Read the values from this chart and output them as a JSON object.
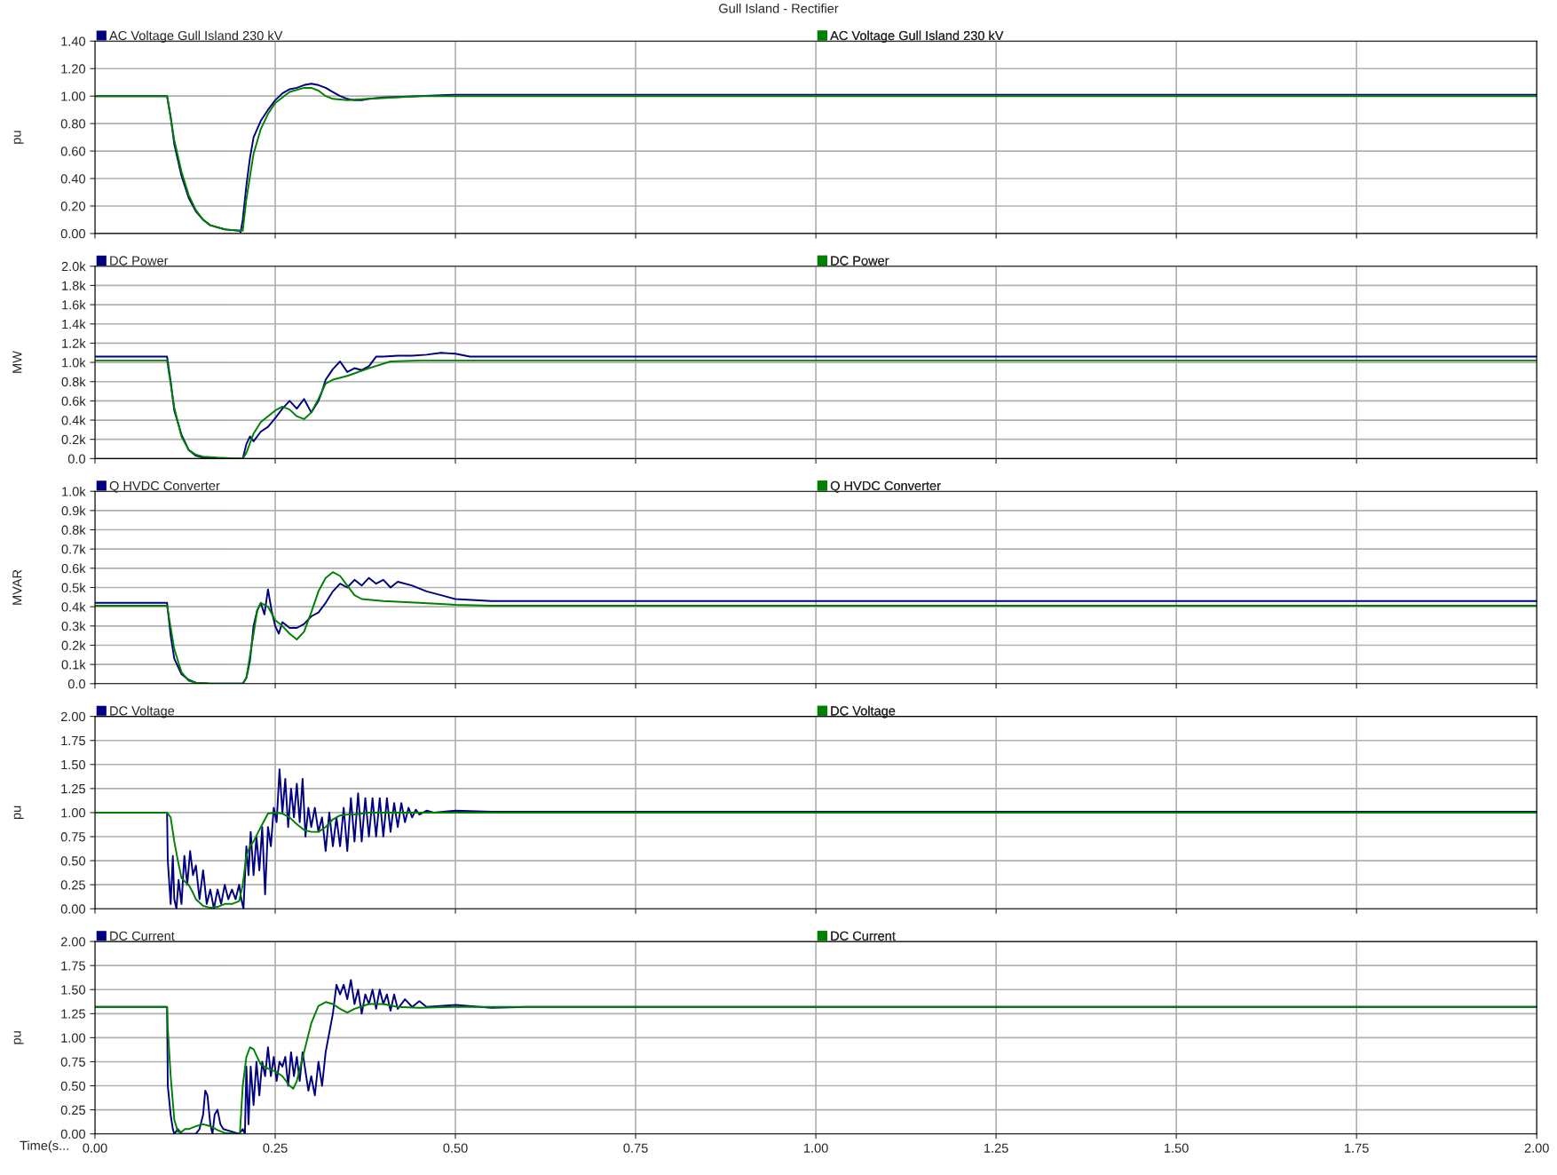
{
  "chart_data": [
    {
      "type": "line",
      "title": "Gull Island - Rectifier",
      "ylabel": "pu",
      "xlim": [
        0,
        2
      ],
      "ylim": [
        0,
        1.4
      ],
      "grid": true,
      "legend": "top",
      "tick_labels": "y",
      "line_style": "solid",
      "marker": "none",
      "xticks": [
        {
          "value": 0,
          "label": null
        },
        {
          "value": 0.25,
          "label": null
        },
        {
          "value": 0.5,
          "label": null
        },
        {
          "value": 0.75,
          "label": null
        },
        {
          "value": 1,
          "label": null
        },
        {
          "value": 1.25,
          "label": null
        },
        {
          "value": 1.5,
          "label": null
        },
        {
          "value": 1.75,
          "label": null
        },
        {
          "value": 2,
          "label": null
        }
      ],
      "yticks": [
        {
          "value": 0,
          "label": "0.00"
        },
        {
          "value": 0.2,
          "label": "0.20"
        },
        {
          "value": 0.4,
          "label": "0.40"
        },
        {
          "value": 0.6,
          "label": "0.60"
        },
        {
          "value": 0.8,
          "label": "0.80"
        },
        {
          "value": 1.0,
          "label": "1.00"
        },
        {
          "value": 1.2,
          "label": "1.20"
        },
        {
          "value": 1.4,
          "label": "1.40"
        }
      ],
      "series": [
        {
          "name": "AC Voltage Gull Island 230 kV",
          "color": "#000080",
          "x": [
            0,
            0.1,
            0.105,
            0.11,
            0.12,
            0.13,
            0.14,
            0.15,
            0.16,
            0.18,
            0.2,
            0.202,
            0.205,
            0.21,
            0.215,
            0.22,
            0.23,
            0.24,
            0.25,
            0.26,
            0.27,
            0.28,
            0.29,
            0.3,
            0.31,
            0.32,
            0.33,
            0.34,
            0.35,
            0.36,
            0.37,
            0.38,
            0.4,
            0.45,
            0.5,
            0.55,
            0.6,
            2.0
          ],
          "values": [
            1.0,
            1.0,
            0.85,
            0.65,
            0.42,
            0.26,
            0.16,
            0.1,
            0.06,
            0.03,
            0.02,
            0.01,
            0.1,
            0.35,
            0.55,
            0.7,
            0.82,
            0.9,
            0.97,
            1.02,
            1.05,
            1.06,
            1.08,
            1.09,
            1.08,
            1.06,
            1.03,
            1.0,
            0.98,
            0.97,
            0.97,
            0.98,
            0.99,
            1.0,
            1.01,
            1.01,
            1.01,
            1.01
          ]
        },
        {
          "name": "AC Voltage Gull Island 230 kV",
          "color": "#008000",
          "x": [
            0,
            0.1,
            0.11,
            0.12,
            0.13,
            0.14,
            0.15,
            0.16,
            0.18,
            0.2,
            0.205,
            0.21,
            0.22,
            0.23,
            0.24,
            0.25,
            0.27,
            0.29,
            0.3,
            0.31,
            0.32,
            0.33,
            0.35,
            0.38,
            0.45,
            0.5,
            2.0
          ],
          "values": [
            1.0,
            1.0,
            0.68,
            0.45,
            0.28,
            0.17,
            0.1,
            0.06,
            0.03,
            0.02,
            0.02,
            0.25,
            0.58,
            0.76,
            0.87,
            0.95,
            1.03,
            1.06,
            1.06,
            1.04,
            1.0,
            0.98,
            0.97,
            0.98,
            1.0,
            1.0,
            1.0
          ]
        }
      ]
    },
    {
      "type": "line",
      "ylabel": "MW",
      "xlim": [
        0,
        2
      ],
      "ylim": [
        0,
        2000
      ],
      "grid": true,
      "legend": "top",
      "tick_labels": "y",
      "line_style": "solid",
      "marker": "none",
      "xticks": [
        {
          "value": 0,
          "label": null
        },
        {
          "value": 0.25,
          "label": null
        },
        {
          "value": 0.5,
          "label": null
        },
        {
          "value": 0.75,
          "label": null
        },
        {
          "value": 1,
          "label": null
        },
        {
          "value": 1.25,
          "label": null
        },
        {
          "value": 1.5,
          "label": null
        },
        {
          "value": 1.75,
          "label": null
        },
        {
          "value": 2,
          "label": null
        }
      ],
      "yticks": [
        {
          "value": 0,
          "label": "0.0"
        },
        {
          "value": 200,
          "label": "0.2k"
        },
        {
          "value": 400,
          "label": "0.4k"
        },
        {
          "value": 600,
          "label": "0.6k"
        },
        {
          "value": 800,
          "label": "0.8k"
        },
        {
          "value": 1000,
          "label": "1.0k"
        },
        {
          "value": 1200,
          "label": "1.2k"
        },
        {
          "value": 1400,
          "label": "1.4k"
        },
        {
          "value": 1600,
          "label": "1.6k"
        },
        {
          "value": 1800,
          "label": "1.8k"
        },
        {
          "value": 2000,
          "label": "2.0k"
        }
      ],
      "series": [
        {
          "name": "DC Power",
          "color": "#000080",
          "x": [
            0,
            0.1,
            0.105,
            0.11,
            0.12,
            0.13,
            0.14,
            0.15,
            0.18,
            0.205,
            0.21,
            0.215,
            0.22,
            0.23,
            0.24,
            0.25,
            0.26,
            0.27,
            0.28,
            0.29,
            0.3,
            0.31,
            0.315,
            0.32,
            0.33,
            0.34,
            0.35,
            0.36,
            0.37,
            0.38,
            0.39,
            0.4,
            0.42,
            0.44,
            0.46,
            0.48,
            0.5,
            0.52,
            0.55,
            0.6,
            2.0
          ],
          "values": [
            1060,
            1060,
            800,
            500,
            250,
            90,
            30,
            10,
            0,
            0,
            150,
            230,
            180,
            280,
            330,
            420,
            520,
            600,
            520,
            620,
            480,
            600,
            700,
            820,
            930,
            1010,
            900,
            940,
            920,
            960,
            1060,
            1060,
            1070,
            1070,
            1080,
            1100,
            1090,
            1060,
            1060,
            1060,
            1060
          ]
        },
        {
          "name": "DC Power",
          "color": "#008000",
          "x": [
            0,
            0.1,
            0.11,
            0.12,
            0.13,
            0.14,
            0.15,
            0.17,
            0.2,
            0.205,
            0.21,
            0.22,
            0.23,
            0.24,
            0.25,
            0.26,
            0.27,
            0.28,
            0.29,
            0.3,
            0.31,
            0.32,
            0.33,
            0.35,
            0.38,
            0.41,
            0.45,
            0.5,
            2.0
          ],
          "values": [
            1020,
            1020,
            530,
            230,
            90,
            40,
            20,
            10,
            0,
            0,
            60,
            260,
            380,
            440,
            500,
            540,
            510,
            440,
            410,
            480,
            620,
            780,
            820,
            860,
            940,
            1010,
            1020,
            1020,
            1020
          ]
        }
      ]
    },
    {
      "type": "line",
      "ylabel": "MVAR",
      "xlim": [
        0,
        2
      ],
      "ylim": [
        0,
        1000
      ],
      "grid": true,
      "legend": "top",
      "tick_labels": "y",
      "line_style": "solid",
      "marker": "none",
      "xticks": [
        {
          "value": 0,
          "label": null
        },
        {
          "value": 0.25,
          "label": null
        },
        {
          "value": 0.5,
          "label": null
        },
        {
          "value": 0.75,
          "label": null
        },
        {
          "value": 1,
          "label": null
        },
        {
          "value": 1.25,
          "label": null
        },
        {
          "value": 1.5,
          "label": null
        },
        {
          "value": 1.75,
          "label": null
        },
        {
          "value": 2,
          "label": null
        }
      ],
      "yticks": [
        {
          "value": 0,
          "label": "0.0"
        },
        {
          "value": 100,
          "label": "0.1k"
        },
        {
          "value": 200,
          "label": "0.2k"
        },
        {
          "value": 300,
          "label": "0.3k"
        },
        {
          "value": 400,
          "label": "0.4k"
        },
        {
          "value": 500,
          "label": "0.5k"
        },
        {
          "value": 600,
          "label": "0.6k"
        },
        {
          "value": 700,
          "label": "0.7k"
        },
        {
          "value": 800,
          "label": "0.8k"
        },
        {
          "value": 900,
          "label": "0.9k"
        },
        {
          "value": 1000,
          "label": "1.0k"
        }
      ],
      "series": [
        {
          "name": "Q HVDC Converter",
          "color": "#000080",
          "x": [
            0,
            0.1,
            0.105,
            0.11,
            0.12,
            0.13,
            0.14,
            0.16,
            0.2,
            0.205,
            0.21,
            0.215,
            0.22,
            0.225,
            0.23,
            0.235,
            0.24,
            0.245,
            0.25,
            0.255,
            0.26,
            0.27,
            0.28,
            0.29,
            0.3,
            0.31,
            0.32,
            0.33,
            0.34,
            0.35,
            0.36,
            0.37,
            0.38,
            0.39,
            0.4,
            0.41,
            0.42,
            0.44,
            0.46,
            0.48,
            0.5,
            0.55,
            0.6,
            2.0
          ],
          "values": [
            420,
            420,
            250,
            130,
            50,
            20,
            5,
            0,
            0,
            0,
            30,
            120,
            300,
            380,
            420,
            360,
            490,
            380,
            300,
            260,
            320,
            290,
            290,
            310,
            350,
            370,
            420,
            480,
            520,
            500,
            540,
            510,
            550,
            520,
            540,
            500,
            530,
            510,
            480,
            460,
            440,
            430,
            430,
            430
          ]
        },
        {
          "name": "Q HVDC Converter",
          "color": "#008000",
          "x": [
            0,
            0.1,
            0.11,
            0.12,
            0.13,
            0.14,
            0.16,
            0.2,
            0.205,
            0.21,
            0.22,
            0.225,
            0.23,
            0.24,
            0.25,
            0.26,
            0.27,
            0.28,
            0.29,
            0.3,
            0.31,
            0.32,
            0.33,
            0.34,
            0.35,
            0.36,
            0.37,
            0.4,
            0.45,
            0.5,
            0.55,
            2.0
          ],
          "values": [
            405,
            405,
            180,
            60,
            15,
            5,
            0,
            0,
            0,
            30,
            260,
            380,
            420,
            400,
            330,
            300,
            260,
            230,
            270,
            370,
            480,
            550,
            580,
            560,
            510,
            460,
            440,
            430,
            420,
            410,
            405,
            405
          ]
        }
      ]
    },
    {
      "type": "line",
      "ylabel": "pu",
      "xlim": [
        0,
        2
      ],
      "ylim": [
        0,
        2
      ],
      "grid": true,
      "legend": "top",
      "tick_labels": "y",
      "line_style": "solid",
      "marker": "none",
      "xticks": [
        {
          "value": 0,
          "label": null
        },
        {
          "value": 0.25,
          "label": null
        },
        {
          "value": 0.5,
          "label": null
        },
        {
          "value": 0.75,
          "label": null
        },
        {
          "value": 1,
          "label": null
        },
        {
          "value": 1.25,
          "label": null
        },
        {
          "value": 1.5,
          "label": null
        },
        {
          "value": 1.75,
          "label": null
        },
        {
          "value": 2,
          "label": null
        }
      ],
      "yticks": [
        {
          "value": 0,
          "label": "0.00"
        },
        {
          "value": 0.25,
          "label": "0.25"
        },
        {
          "value": 0.5,
          "label": "0.50"
        },
        {
          "value": 0.75,
          "label": "0.75"
        },
        {
          "value": 1.0,
          "label": "1.00"
        },
        {
          "value": 1.25,
          "label": "1.25"
        },
        {
          "value": 1.5,
          "label": "1.50"
        },
        {
          "value": 1.75,
          "label": "1.75"
        },
        {
          "value": 2.0,
          "label": "2.00"
        }
      ],
      "series": [
        {
          "name": "DC Voltage",
          "color": "#000080",
          "x": [
            0,
            0.1,
            0.101,
            0.105,
            0.108,
            0.11,
            0.113,
            0.116,
            0.12,
            0.124,
            0.128,
            0.132,
            0.136,
            0.14,
            0.145,
            0.15,
            0.155,
            0.16,
            0.165,
            0.17,
            0.175,
            0.18,
            0.185,
            0.19,
            0.195,
            0.2,
            0.203,
            0.206,
            0.21,
            0.213,
            0.216,
            0.22,
            0.224,
            0.228,
            0.232,
            0.236,
            0.24,
            0.244,
            0.248,
            0.252,
            0.256,
            0.26,
            0.264,
            0.268,
            0.272,
            0.276,
            0.28,
            0.284,
            0.288,
            0.292,
            0.296,
            0.3,
            0.305,
            0.31,
            0.315,
            0.32,
            0.325,
            0.33,
            0.335,
            0.34,
            0.345,
            0.35,
            0.355,
            0.36,
            0.365,
            0.37,
            0.375,
            0.38,
            0.385,
            0.39,
            0.395,
            0.4,
            0.405,
            0.41,
            0.415,
            0.42,
            0.425,
            0.43,
            0.435,
            0.44,
            0.445,
            0.45,
            0.46,
            0.47,
            0.5,
            0.55,
            2.0
          ],
          "values": [
            1.0,
            1.0,
            0.5,
            0.05,
            0.55,
            0.1,
            0.0,
            0.3,
            0.05,
            0.55,
            0.25,
            0.6,
            0.35,
            0.45,
            0.1,
            0.4,
            0.05,
            0.2,
            0.0,
            0.2,
            0.05,
            0.25,
            0.1,
            0.2,
            0.1,
            0.25,
            0.1,
            0.0,
            0.65,
            0.35,
            0.8,
            0.35,
            0.75,
            0.4,
            0.85,
            0.15,
            0.85,
            0.65,
            1.05,
            0.9,
            1.45,
            1.0,
            1.35,
            0.85,
            1.25,
            0.95,
            1.3,
            0.9,
            1.35,
            0.75,
            1.05,
            0.85,
            1.05,
            0.8,
            0.95,
            0.6,
            1.0,
            0.65,
            0.95,
            0.65,
            1.05,
            0.6,
            1.15,
            0.7,
            1.2,
            0.7,
            1.15,
            0.75,
            1.15,
            0.75,
            1.15,
            0.75,
            1.15,
            0.8,
            1.1,
            0.85,
            1.1,
            0.9,
            1.05,
            0.95,
            1.03,
            0.98,
            1.02,
            1.0,
            1.02,
            1.01,
            1.01
          ]
        },
        {
          "name": "DC Voltage",
          "color": "#008000",
          "x": [
            0,
            0.1,
            0.105,
            0.11,
            0.115,
            0.12,
            0.125,
            0.13,
            0.135,
            0.14,
            0.15,
            0.16,
            0.17,
            0.18,
            0.19,
            0.2,
            0.205,
            0.21,
            0.215,
            0.22,
            0.23,
            0.24,
            0.25,
            0.26,
            0.27,
            0.28,
            0.29,
            0.3,
            0.31,
            0.32,
            0.33,
            0.34,
            0.35,
            0.36,
            0.37,
            0.38,
            0.4,
            0.45,
            0.5,
            2.0
          ],
          "values": [
            1.0,
            1.0,
            0.95,
            0.7,
            0.5,
            0.32,
            0.28,
            0.25,
            0.18,
            0.1,
            0.03,
            0.01,
            0.02,
            0.05,
            0.05,
            0.08,
            0.25,
            0.55,
            0.65,
            0.7,
            0.85,
            0.99,
            1.0,
            0.99,
            0.95,
            0.88,
            0.82,
            0.8,
            0.8,
            0.85,
            0.93,
            0.97,
            0.98,
            0.98,
            0.99,
            1.0,
            1.0,
            1.0,
            1.0,
            1.0
          ]
        }
      ]
    },
    {
      "type": "line",
      "ylabel": "pu",
      "xlabel": "Time(s...",
      "xlim": [
        0,
        2
      ],
      "ylim": [
        0,
        2
      ],
      "grid": true,
      "legend": "top",
      "line_style": "solid",
      "marker": "none",
      "xticks": [
        {
          "value": 0,
          "label": "0.00"
        },
        {
          "value": 0.25,
          "label": "0.25"
        },
        {
          "value": 0.5,
          "label": "0.50"
        },
        {
          "value": 0.75,
          "label": "0.75"
        },
        {
          "value": 1,
          "label": "1.00"
        },
        {
          "value": 1.25,
          "label": "1.25"
        },
        {
          "value": 1.5,
          "label": "1.50"
        },
        {
          "value": 1.75,
          "label": "1.75"
        },
        {
          "value": 2,
          "label": "2.00"
        }
      ],
      "yticks": [
        {
          "value": 0,
          "label": "0.00"
        },
        {
          "value": 0.25,
          "label": "0.25"
        },
        {
          "value": 0.5,
          "label": "0.50"
        },
        {
          "value": 0.75,
          "label": "0.75"
        },
        {
          "value": 1.0,
          "label": "1.00"
        },
        {
          "value": 1.25,
          "label": "1.25"
        },
        {
          "value": 1.5,
          "label": "1.50"
        },
        {
          "value": 1.75,
          "label": "1.75"
        },
        {
          "value": 2.0,
          "label": "2.00"
        }
      ],
      "series": [
        {
          "name": "DC Current",
          "color": "#000080",
          "x": [
            0,
            0.1,
            0.101,
            0.105,
            0.108,
            0.11,
            0.115,
            0.12,
            0.14,
            0.145,
            0.15,
            0.153,
            0.156,
            0.16,
            0.163,
            0.166,
            0.17,
            0.174,
            0.178,
            0.2,
            0.205,
            0.208,
            0.21,
            0.213,
            0.216,
            0.22,
            0.224,
            0.228,
            0.232,
            0.236,
            0.24,
            0.244,
            0.248,
            0.252,
            0.256,
            0.26,
            0.264,
            0.268,
            0.272,
            0.276,
            0.28,
            0.284,
            0.288,
            0.292,
            0.296,
            0.3,
            0.305,
            0.31,
            0.315,
            0.32,
            0.325,
            0.33,
            0.335,
            0.34,
            0.345,
            0.35,
            0.355,
            0.36,
            0.365,
            0.37,
            0.375,
            0.38,
            0.385,
            0.39,
            0.395,
            0.4,
            0.405,
            0.41,
            0.415,
            0.42,
            0.43,
            0.44,
            0.45,
            0.46,
            0.5,
            0.55,
            0.6,
            2.0
          ],
          "values": [
            1.32,
            1.32,
            0.5,
            0.2,
            0.05,
            0.0,
            0.05,
            0.0,
            0.0,
            0.05,
            0.2,
            0.45,
            0.4,
            0.1,
            0.0,
            0.2,
            0.25,
            0.1,
            0.05,
            0.0,
            0.05,
            0.0,
            0.7,
            0.1,
            0.7,
            0.3,
            0.75,
            0.4,
            0.75,
            0.6,
            0.9,
            0.6,
            0.8,
            0.55,
            0.75,
            0.7,
            0.8,
            0.5,
            0.85,
            0.6,
            0.8,
            0.55,
            0.85,
            0.65,
            0.45,
            0.6,
            0.4,
            0.75,
            0.5,
            0.85,
            1.05,
            1.25,
            1.55,
            1.45,
            1.55,
            1.4,
            1.6,
            1.35,
            1.5,
            1.25,
            1.45,
            1.35,
            1.5,
            1.3,
            1.5,
            1.35,
            1.45,
            1.28,
            1.45,
            1.3,
            1.4,
            1.32,
            1.38,
            1.32,
            1.34,
            1.31,
            1.32,
            1.32
          ]
        },
        {
          "name": "DC Current",
          "color": "#008000",
          "x": [
            0,
            0.1,
            0.101,
            0.105,
            0.11,
            0.115,
            0.12,
            0.125,
            0.13,
            0.14,
            0.15,
            0.16,
            0.17,
            0.18,
            0.2,
            0.201,
            0.205,
            0.21,
            0.215,
            0.22,
            0.225,
            0.23,
            0.24,
            0.25,
            0.26,
            0.27,
            0.275,
            0.28,
            0.29,
            0.3,
            0.31,
            0.32,
            0.33,
            0.34,
            0.35,
            0.36,
            0.38,
            0.4,
            0.42,
            0.45,
            0.5,
            2.0
          ],
          "values": [
            1.32,
            1.32,
            1.1,
            0.6,
            0.15,
            0.02,
            0.02,
            0.05,
            0.05,
            0.08,
            0.1,
            0.08,
            0.04,
            0.01,
            0.0,
            0.0,
            0.5,
            0.8,
            0.9,
            0.88,
            0.8,
            0.72,
            0.68,
            0.65,
            0.6,
            0.5,
            0.47,
            0.55,
            0.85,
            1.15,
            1.33,
            1.37,
            1.35,
            1.3,
            1.26,
            1.3,
            1.35,
            1.35,
            1.32,
            1.31,
            1.32,
            1.32
          ]
        }
      ]
    }
  ]
}
